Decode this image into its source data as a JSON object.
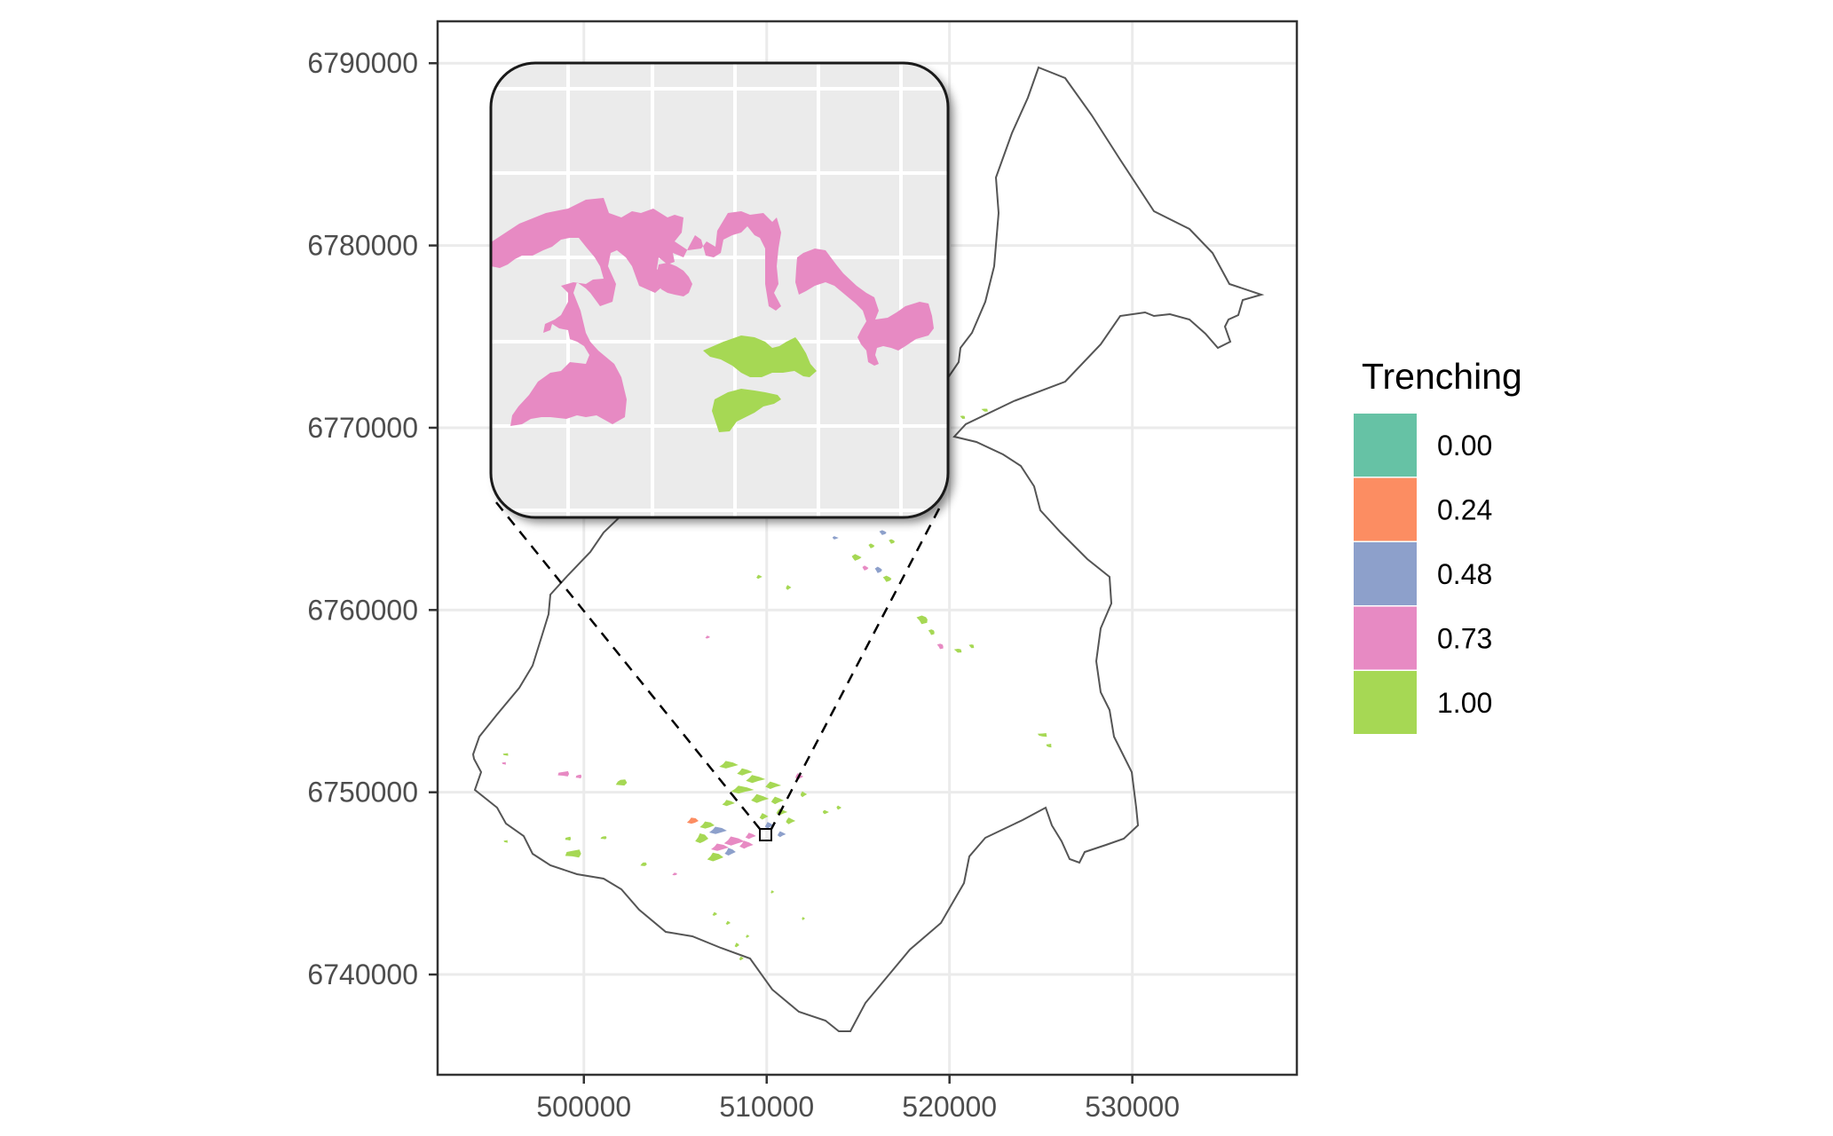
{
  "map": {
    "x_ticks": [
      "500000",
      "510000",
      "520000",
      "530000"
    ],
    "y_ticks": [
      "6790000",
      "6780000",
      "6770000",
      "6760000",
      "6750000",
      "6740000"
    ],
    "xlim": [
      492000,
      539000
    ],
    "ylim": [
      6734500,
      6792300
    ],
    "outline_color": "#555555",
    "background": "#ffffff",
    "grid_color": "#ebebeb",
    "inset_background": "#ebebeb",
    "zoom_location": {
      "x": 510300,
      "y": 6747500
    }
  },
  "legend": {
    "title": "Trenching",
    "items": [
      {
        "label": "0.00",
        "color": "#66c2a5"
      },
      {
        "label": "0.24",
        "color": "#fc8d62"
      },
      {
        "label": "0.48",
        "color": "#8da0cb"
      },
      {
        "label": "0.73",
        "color": "#e78ac3"
      },
      {
        "label": "1.00",
        "color": "#a6d854"
      }
    ]
  }
}
